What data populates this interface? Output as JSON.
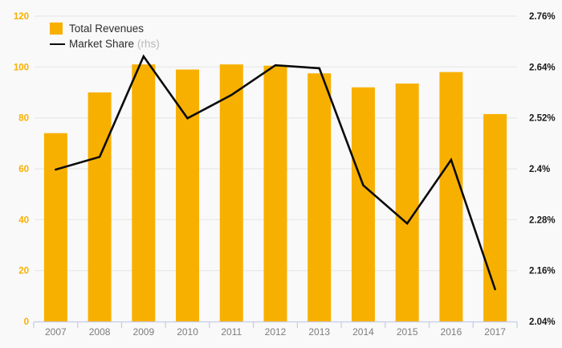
{
  "chart_data": {
    "type": "bar",
    "subtype": "combo-bar-line-dual-axis",
    "categories": [
      "2007",
      "2008",
      "2009",
      "2010",
      "2011",
      "2012",
      "2013",
      "2014",
      "2015",
      "2016",
      "2017"
    ],
    "series": [
      {
        "name": "Total Revenues",
        "type": "bar",
        "axis": "left",
        "values": [
          74,
          90,
          101,
          99,
          101,
          100.5,
          97.5,
          92,
          93.5,
          98,
          81.5
        ]
      },
      {
        "name": "Market Share",
        "type": "line",
        "axis": "right",
        "values": [
          2.398,
          2.428,
          2.665,
          2.519,
          2.574,
          2.644,
          2.637,
          2.361,
          2.271,
          2.421,
          2.116
        ]
      }
    ],
    "left_axis": {
      "min": 0,
      "max": 120,
      "step": 20,
      "tick_labels": [
        "0",
        "20",
        "40",
        "60",
        "80",
        "100",
        "120"
      ]
    },
    "right_axis": {
      "min": 2.04,
      "max": 2.76,
      "step": 0.12,
      "tick_labels": [
        "2.04%",
        "2.16%",
        "2.28%",
        "2.4%",
        "2.52%",
        "2.64%",
        "2.76%"
      ]
    },
    "title": "",
    "xlabel": "",
    "ylabel": "",
    "grid": true,
    "legend_position": "top-left"
  },
  "legend": {
    "items": [
      {
        "label": "Total Revenues",
        "suffix": ""
      },
      {
        "label": "Market Share",
        "suffix": "(rhs)"
      }
    ]
  },
  "colors": {
    "bar": "#F8B000",
    "line": "#0b0b0b",
    "background": "#f9f9f9",
    "gridline": "#e7e7e7",
    "axis_line": "#c6cbe6",
    "left_tick_label": "#F8B000",
    "right_tick_label": "#1a1a1a",
    "year_label": "#7d7d7d",
    "legend_text": "#2e2e2e",
    "legend_rhs_text": "#b8b8b8"
  }
}
